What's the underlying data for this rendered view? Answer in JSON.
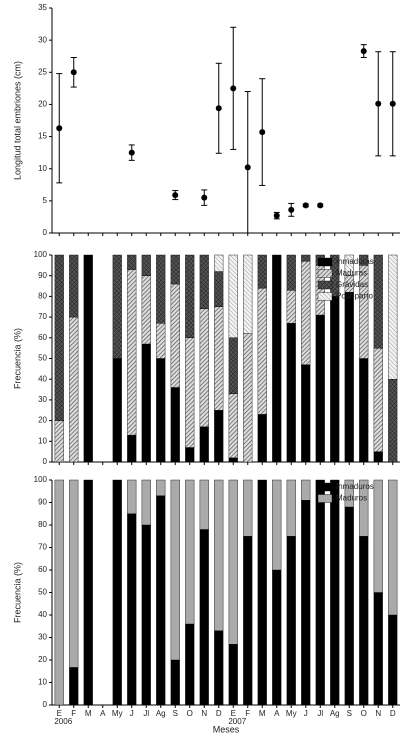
{
  "chart_data": [
    {
      "type": "scatter_error",
      "ylabel": "Longitud total embriones (cm)",
      "values": [
        16.3,
        25,
        null,
        null,
        null,
        12.5,
        null,
        null,
        5.9,
        null,
        5.5,
        19.4,
        22.5,
        10.2,
        15.7,
        2.7,
        3.6,
        4.3,
        4.3,
        null,
        null,
        28.3,
        20.1,
        20.1
      ],
      "errors": [
        8.5,
        2.3,
        null,
        null,
        null,
        1.2,
        null,
        null,
        0.7,
        null,
        1.2,
        7,
        9.5,
        11.8,
        8.3,
        0.5,
        1,
        0.2,
        0.2,
        null,
        null,
        1,
        8.1,
        8.1
      ],
      "color": "#000000",
      "ylim": [
        0,
        35
      ],
      "yticks": [
        0,
        5,
        10,
        15,
        20,
        25,
        30,
        35
      ]
    },
    {
      "type": "stacked_bar",
      "ylabel": "Frecuencia (%)",
      "legend": "top-right",
      "series": [
        {
          "name": "Inmaduras",
          "color": "#000000",
          "hatch": "solid",
          "values": [
            0,
            0,
            100,
            null,
            50,
            13,
            57,
            50,
            36,
            7,
            17,
            25,
            2,
            0,
            23,
            100,
            67,
            47,
            71,
            80,
            82,
            50,
            5,
            0
          ]
        },
        {
          "name": "Maduras",
          "color": "#999999",
          "hatch": "diagonal",
          "values": [
            20,
            70,
            0,
            null,
            0,
            80,
            33,
            17,
            50,
            53,
            57,
            50,
            31,
            62,
            61,
            0,
            16,
            50,
            24,
            0,
            8,
            45,
            50,
            0
          ]
        },
        {
          "name": "Grávidas",
          "color": "#444444",
          "hatch": "cross",
          "values": [
            80,
            30,
            0,
            null,
            50,
            7,
            10,
            33,
            14,
            40,
            26,
            17,
            27,
            0,
            16,
            0,
            17,
            3,
            5,
            20,
            0,
            5,
            45,
            40
          ]
        },
        {
          "name": "Post-parto",
          "color": "#cccccc",
          "hatch": "reverse",
          "values": [
            0,
            0,
            0,
            null,
            0,
            0,
            0,
            0,
            0,
            0,
            0,
            8,
            40,
            38,
            0,
            0,
            0,
            0,
            0,
            0,
            10,
            0,
            0,
            60
          ]
        }
      ],
      "ylim": [
        0,
        100
      ],
      "yticks": [
        0,
        10,
        20,
        30,
        40,
        50,
        60,
        70,
        80,
        90,
        100
      ]
    },
    {
      "type": "stacked_bar",
      "ylabel": "Frecuencia (%)",
      "xlabel": "Meses",
      "legend": "top-right",
      "categories": [
        "E",
        "F",
        "M",
        "A",
        "My",
        "J",
        "Jl",
        "Ag",
        "S",
        "O",
        "N",
        "D",
        "E",
        "F",
        "M",
        "A",
        "My",
        "J",
        "Jl",
        "Ag",
        "S",
        "O",
        "N",
        "D"
      ],
      "year_labels": [
        {
          "label": "2006",
          "at": 0
        },
        {
          "label": "2007",
          "at": 12
        }
      ],
      "series": [
        {
          "name": "Inmaduros",
          "color": "#000000",
          "hatch": "solid",
          "values": [
            0,
            16.7,
            100,
            null,
            100,
            85,
            80,
            93,
            20,
            36,
            78,
            33,
            27,
            75,
            100,
            60,
            75,
            91,
            100,
            100,
            88,
            75,
            50,
            40
          ]
        },
        {
          "name": "Maduros",
          "color": "#aaaaaa",
          "hatch": "solid",
          "values": [
            100,
            83.3,
            0,
            null,
            0,
            15,
            20,
            7,
            80,
            64,
            22,
            67,
            73,
            25,
            0,
            40,
            25,
            9,
            0,
            0,
            12,
            25,
            50,
            60
          ]
        }
      ],
      "ylim": [
        0,
        100
      ],
      "yticks": [
        0,
        10,
        20,
        30,
        40,
        50,
        60,
        70,
        80,
        90,
        100
      ]
    }
  ]
}
